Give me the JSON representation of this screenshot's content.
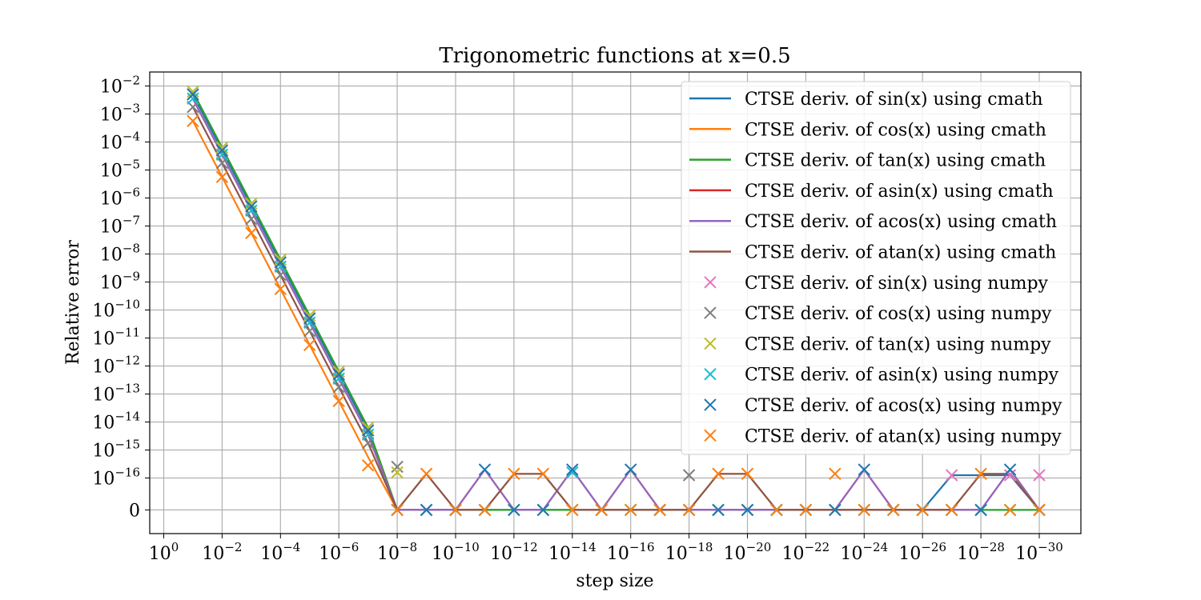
{
  "chart_data": {
    "type": "line",
    "title": "Trigonometric functions at x=0.5",
    "xlabel": "step size",
    "ylabel": "Relative error",
    "x_scale": "log10 (decreasing to the right)",
    "y_scale": "symlog",
    "grid": true,
    "legend_position": "top-right",
    "x_exponents": [
      -1,
      -2,
      -3,
      -4,
      -5,
      -6,
      -7,
      -8,
      -9,
      -10,
      -11,
      -12,
      -13,
      -14,
      -15,
      -16,
      -17,
      -18,
      -19,
      -20,
      -21,
      -22,
      -23,
      -24,
      -25,
      -26,
      -27,
      -28,
      -29,
      -30
    ],
    "x_ticks": [
      {
        "base": "10",
        "exp": "0",
        "e": 0
      },
      {
        "base": "10",
        "exp": "−2",
        "e": -2
      },
      {
        "base": "10",
        "exp": "−4",
        "e": -4
      },
      {
        "base": "10",
        "exp": "−6",
        "e": -6
      },
      {
        "base": "10",
        "exp": "−8",
        "e": -8
      },
      {
        "base": "10",
        "exp": "−10",
        "e": -10
      },
      {
        "base": "10",
        "exp": "−12",
        "e": -12
      },
      {
        "base": "10",
        "exp": "−14",
        "e": -14
      },
      {
        "base": "10",
        "exp": "−16",
        "e": -16
      },
      {
        "base": "10",
        "exp": "−18",
        "e": -18
      },
      {
        "base": "10",
        "exp": "−20",
        "e": -20
      },
      {
        "base": "10",
        "exp": "−22",
        "e": -22
      },
      {
        "base": "10",
        "exp": "−24",
        "e": -24
      },
      {
        "base": "10",
        "exp": "−26",
        "e": -26
      },
      {
        "base": "10",
        "exp": "−28",
        "e": -28
      },
      {
        "base": "10",
        "exp": "−30",
        "e": -30
      }
    ],
    "y_ticks": [
      {
        "base": "10",
        "exp": "−2",
        "v": -2
      },
      {
        "base": "10",
        "exp": "−3",
        "v": -3
      },
      {
        "base": "10",
        "exp": "−4",
        "v": -4
      },
      {
        "base": "10",
        "exp": "−5",
        "v": -5
      },
      {
        "base": "10",
        "exp": "−6",
        "v": -6
      },
      {
        "base": "10",
        "exp": "−7",
        "v": -7
      },
      {
        "base": "10",
        "exp": "−8",
        "v": -8
      },
      {
        "base": "10",
        "exp": "−9",
        "v": -9
      },
      {
        "base": "10",
        "exp": "−10",
        "v": -10
      },
      {
        "base": "10",
        "exp": "−11",
        "v": -11
      },
      {
        "base": "10",
        "exp": "−12",
        "v": -12
      },
      {
        "base": "10",
        "exp": "−13",
        "v": -13
      },
      {
        "base": "10",
        "exp": "−14",
        "v": -14
      },
      {
        "base": "10",
        "exp": "−15",
        "v": -15
      },
      {
        "base": "10",
        "exp": "−16",
        "v": -16
      },
      {
        "base": "",
        "exp": "",
        "label": "0",
        "v": -17.14
      }
    ],
    "series_note": "values are log10(relative error); 'zero' means exactly 0 error",
    "series": [
      {
        "name": "CTSE deriv. of sin(x) using cmath",
        "kind": "line",
        "color": "#1f77b4",
        "values": [
          -2.3,
          -4.3,
          -6.3,
          -8.3,
          -10.3,
          -12.3,
          -14.3,
          "zero",
          "zero",
          "zero",
          "zero",
          "zero",
          "zero",
          "zero",
          "zero",
          "zero",
          "zero",
          "zero",
          "zero",
          "zero",
          "zero",
          "zero",
          "zero",
          "zero",
          "zero",
          "zero",
          -15.9,
          -15.9,
          -15.9,
          "zero"
        ]
      },
      {
        "name": "CTSE deriv. of cos(x) using cmath",
        "kind": "line",
        "color": "#ff7f0e",
        "values": [
          -3.25,
          -5.25,
          -7.25,
          -9.25,
          -11.25,
          -13.25,
          -15.25,
          "zero",
          -15.85,
          "zero",
          "zero",
          -15.85,
          -15.85,
          "zero",
          "zero",
          "zero",
          "zero",
          "zero",
          -15.85,
          -15.85,
          "zero",
          "zero",
          "zero",
          "zero",
          "zero",
          "zero",
          "zero",
          -15.85,
          -15.85,
          "zero"
        ]
      },
      {
        "name": "CTSE deriv. of tan(x) using cmath",
        "kind": "line",
        "color": "#2ca02c",
        "values": [
          -2.2,
          -4.2,
          -6.2,
          -8.2,
          -10.2,
          -12.2,
          -14.2,
          "zero",
          "zero",
          "zero",
          "zero",
          "zero",
          "zero",
          "zero",
          "zero",
          "zero",
          "zero",
          "zero",
          "zero",
          "zero",
          "zero",
          "zero",
          "zero",
          "zero",
          "zero",
          "zero",
          "zero",
          "zero",
          "zero",
          "zero"
        ]
      },
      {
        "name": "CTSE deriv. of asin(x) using cmath",
        "kind": "line",
        "color": "#d62728",
        "values": [
          -2.45,
          -4.45,
          -6.45,
          -8.45,
          -10.45,
          -12.45,
          -14.45,
          "zero",
          "zero",
          "zero",
          -15.7,
          "zero",
          "zero",
          -15.7,
          "zero",
          -15.7,
          "zero",
          "zero",
          "zero",
          "zero",
          "zero",
          "zero",
          "zero",
          -15.7,
          "zero",
          "zero",
          "zero",
          "zero",
          -15.7,
          "zero"
        ]
      },
      {
        "name": "CTSE deriv. of acos(x) using cmath",
        "kind": "line",
        "color": "#9467bd",
        "values": [
          -2.45,
          -4.45,
          -6.45,
          -8.45,
          -10.45,
          -12.45,
          -14.45,
          "zero",
          "zero",
          "zero",
          -15.7,
          "zero",
          "zero",
          -15.7,
          "zero",
          -15.7,
          "zero",
          "zero",
          "zero",
          "zero",
          "zero",
          "zero",
          "zero",
          -15.7,
          "zero",
          "zero",
          "zero",
          "zero",
          -15.7,
          "zero"
        ]
      },
      {
        "name": "CTSE deriv. of atan(x) using cmath",
        "kind": "line",
        "color": "#8c564b",
        "values": [
          -2.75,
          -4.75,
          -6.75,
          -8.75,
          -10.75,
          -12.75,
          -14.75,
          "zero",
          -15.85,
          "zero",
          "zero",
          -15.85,
          -15.85,
          "zero",
          "zero",
          "zero",
          "zero",
          "zero",
          -15.85,
          -15.85,
          "zero",
          "zero",
          "zero",
          "zero",
          "zero",
          "zero",
          "zero",
          -15.85,
          -15.85,
          "zero"
        ]
      },
      {
        "name": "CTSE deriv. of sin(x) using numpy",
        "kind": "marker",
        "color": "#e377c2",
        "values": [
          -2.3,
          -4.3,
          -6.3,
          -8.3,
          -10.3,
          -12.3,
          -14.3,
          "zero",
          "zero",
          "zero",
          "zero",
          "zero",
          "zero",
          "zero",
          "zero",
          "zero",
          "zero",
          "zero",
          "zero",
          "zero",
          "zero",
          "zero",
          "zero",
          "zero",
          "zero",
          "zero",
          -15.9,
          "zero",
          -15.9,
          -15.9
        ]
      },
      {
        "name": "CTSE deriv. of cos(x) using numpy",
        "kind": "marker",
        "color": "#7f7f7f",
        "values": [
          -2.75,
          -4.75,
          -6.75,
          -8.75,
          -10.75,
          -12.75,
          -14.75,
          -15.6,
          "zero",
          "zero",
          "zero",
          "zero",
          "zero",
          "zero",
          "zero",
          "zero",
          "zero",
          -15.9,
          "zero",
          "zero",
          "zero",
          "zero",
          "zero",
          "zero",
          "zero",
          "zero",
          "zero",
          "zero",
          "zero",
          "zero"
        ]
      },
      {
        "name": "CTSE deriv. of tan(x) using numpy",
        "kind": "marker",
        "color": "#bcbd22",
        "values": [
          -2.2,
          -4.2,
          -6.2,
          -8.2,
          -10.2,
          -12.2,
          -14.2,
          -15.8,
          "zero",
          "zero",
          "zero",
          "zero",
          "zero",
          "zero",
          "zero",
          "zero",
          "zero",
          "zero",
          "zero",
          "zero",
          "zero",
          "zero",
          "zero",
          "zero",
          "zero",
          "zero",
          "zero",
          "zero",
          "zero",
          "zero"
        ]
      },
      {
        "name": "CTSE deriv. of asin(x) using numpy",
        "kind": "marker",
        "color": "#17becf",
        "values": [
          -2.45,
          -4.45,
          -6.45,
          -8.45,
          -10.45,
          -12.45,
          -14.45,
          "zero",
          "zero",
          "zero",
          "zero",
          "zero",
          "zero",
          -15.8,
          "zero",
          "zero",
          "zero",
          "zero",
          "zero",
          "zero",
          "zero",
          "zero",
          "zero",
          "zero",
          "zero",
          "zero",
          "zero",
          "zero",
          "zero",
          "zero"
        ]
      },
      {
        "name": "CTSE deriv. of acos(x) using numpy",
        "kind": "marker",
        "color": "#1f77b4",
        "values": [
          -2.3,
          -4.3,
          -6.3,
          -8.3,
          -10.3,
          -12.3,
          -14.3,
          "zero",
          "zero",
          "zero",
          -15.7,
          "zero",
          "zero",
          -15.7,
          "zero",
          -15.7,
          "zero",
          "zero",
          "zero",
          "zero",
          "zero",
          "zero",
          "zero",
          -15.7,
          "zero",
          "zero",
          "zero",
          "zero",
          -15.7,
          "zero"
        ]
      },
      {
        "name": "CTSE deriv. of atan(x) using numpy",
        "kind": "marker",
        "color": "#ff7f0e",
        "values": [
          -3.25,
          -5.25,
          -7.25,
          -9.25,
          -11.25,
          -13.25,
          -15.55,
          "zero",
          -15.85,
          "zero",
          "zero",
          -15.85,
          -15.85,
          "zero",
          "zero",
          "zero",
          "zero",
          "zero",
          -15.85,
          -15.85,
          "zero",
          "zero",
          -15.85,
          "zero",
          "zero",
          "zero",
          "zero",
          -15.85,
          "zero",
          "zero"
        ]
      }
    ]
  }
}
